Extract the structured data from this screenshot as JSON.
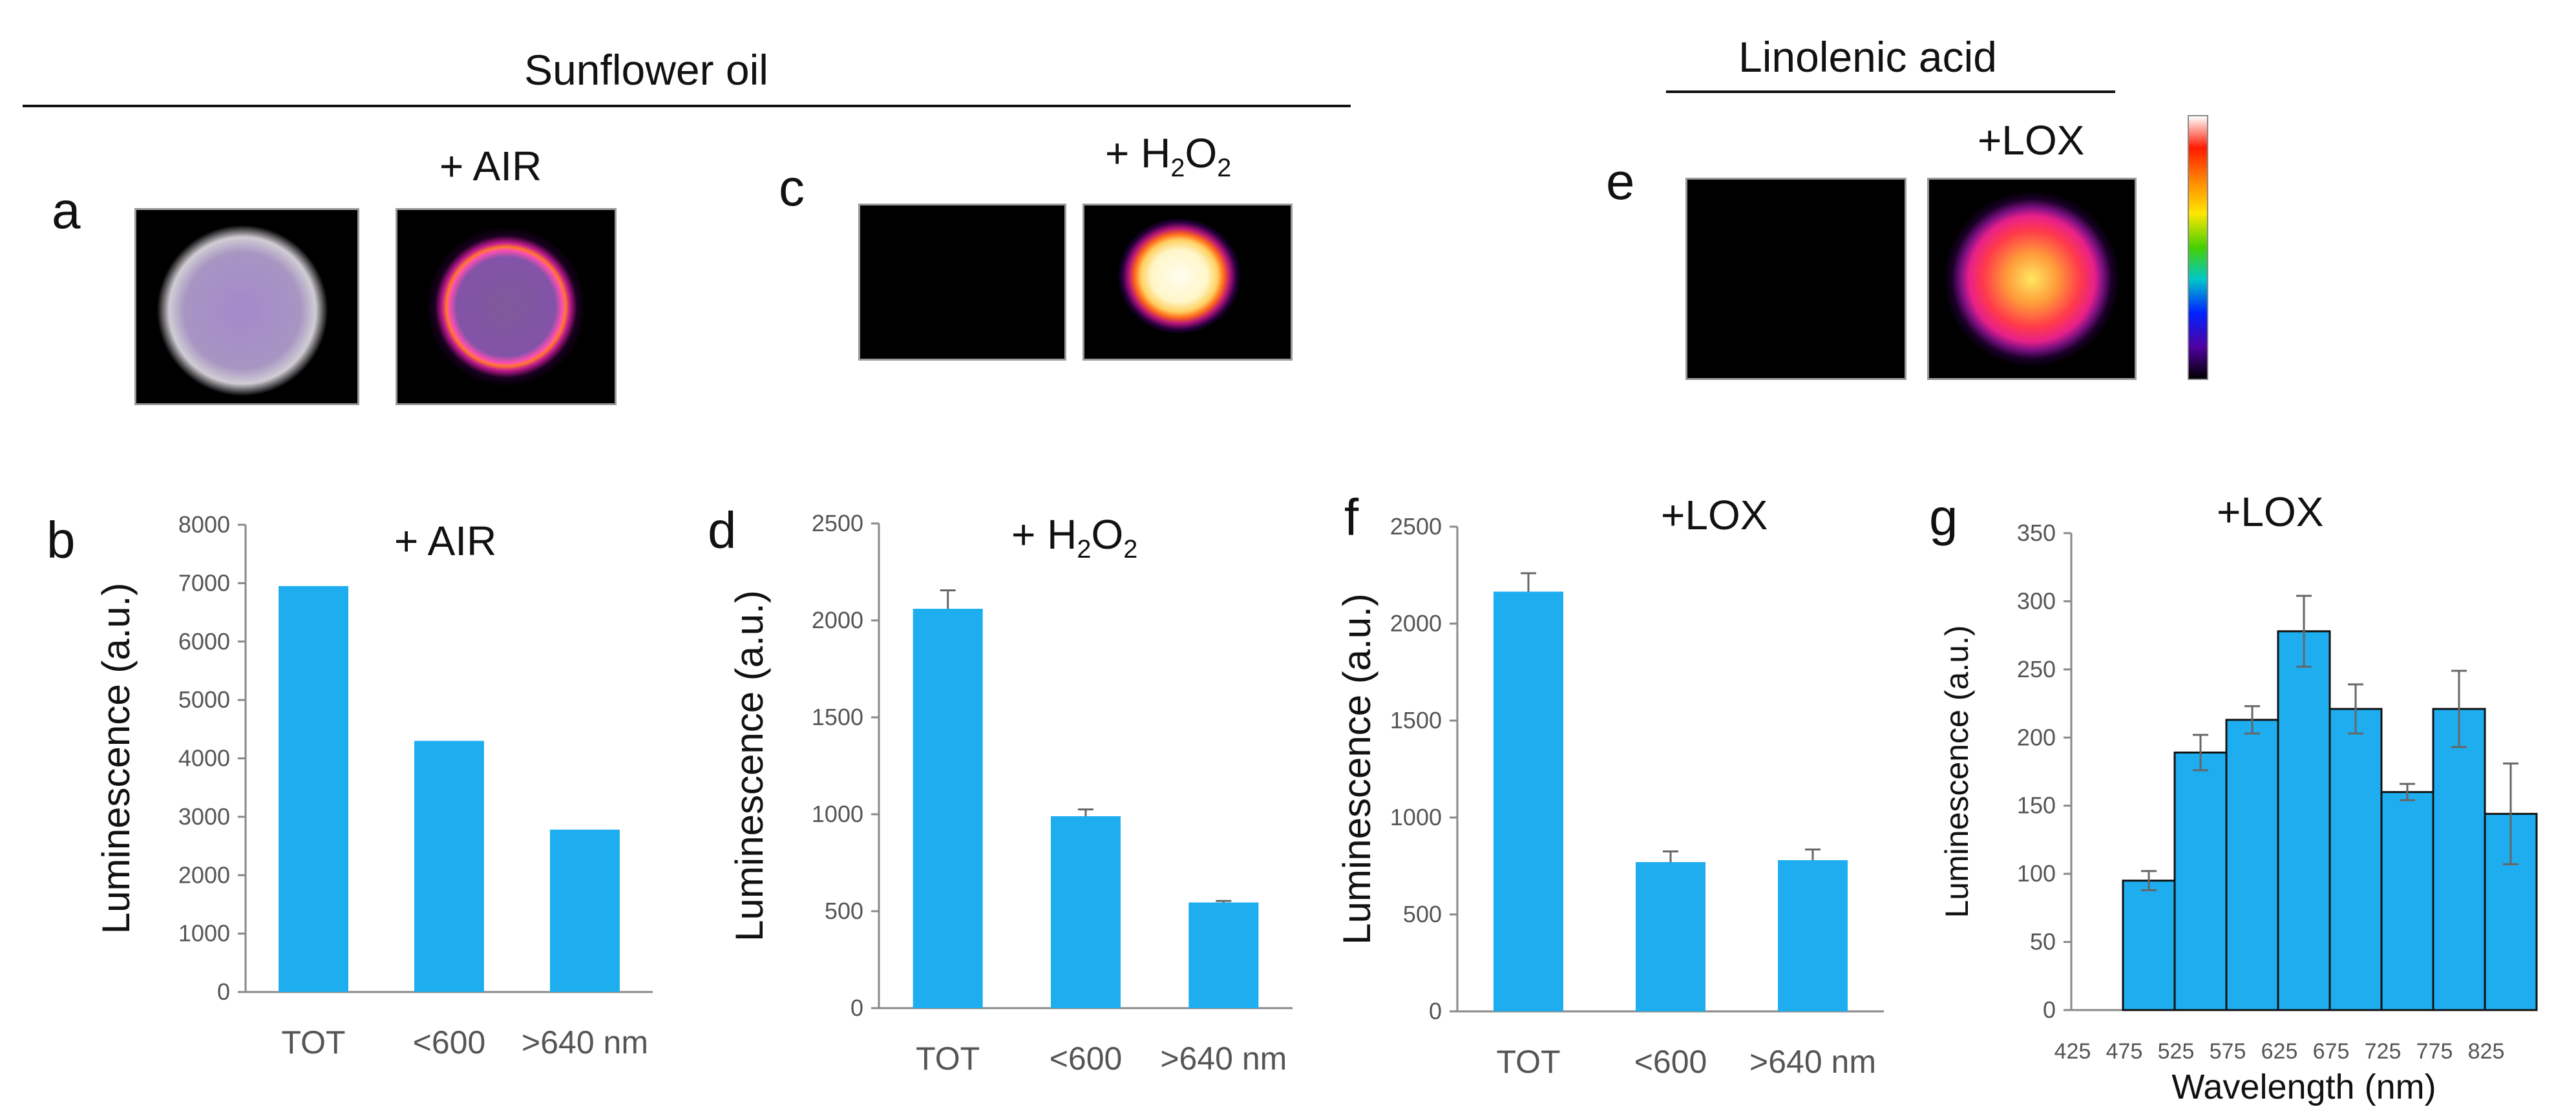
{
  "colors": {
    "bar": "#1EAEF0",
    "bar_stroke": "#111111",
    "axis": "#888888"
  },
  "header": {
    "sunflower_title": "Sunflower oil",
    "linolenic_title": "Linolenic acid"
  },
  "images": {
    "a": {
      "letter": "a",
      "label": "+ AIR"
    },
    "c": {
      "letter": "c",
      "label_prefix": "+ H",
      "label_sub": "2",
      "label_mid": "O",
      "label_sub2": "2"
    },
    "e": {
      "letter": "e",
      "label": "+LOX"
    },
    "colorbar_icon": "intensity-colorbar"
  },
  "chart_data": [
    {
      "id": "b",
      "letter": "b",
      "type": "bar",
      "title": "+ AIR",
      "categories": [
        "TOT",
        "<600",
        ">640 nm"
      ],
      "values": [
        6950,
        4300,
        2780
      ],
      "errors": [
        0,
        0,
        0
      ],
      "ylabel": "Luminescence  (a.u.)",
      "xlabel": "",
      "ylim": [
        0,
        8000
      ],
      "yticks": [
        0,
        1000,
        2000,
        3000,
        4000,
        5000,
        6000,
        7000,
        8000
      ]
    },
    {
      "id": "d",
      "letter": "d",
      "type": "bar",
      "title_prefix": "+ H",
      "title_sub": "2",
      "title_mid": "O",
      "title_sub2": "2",
      "categories": [
        "TOT",
        "<600",
        ">640 nm"
      ],
      "values": [
        2060,
        990,
        545
      ],
      "errors": [
        95,
        35,
        8
      ],
      "ylabel": "Luminescence  (a.u.)",
      "xlabel": "",
      "ylim": [
        0,
        2500
      ],
      "yticks": [
        0,
        500,
        1000,
        1500,
        2000,
        2500
      ]
    },
    {
      "id": "f",
      "letter": "f",
      "type": "bar",
      "title": "+LOX",
      "categories": [
        "TOT",
        "<600",
        ">640 nm"
      ],
      "values": [
        2165,
        770,
        780
      ],
      "errors": [
        95,
        55,
        55
      ],
      "ylabel": "Luminescence  (a.u.)",
      "xlabel": "",
      "ylim": [
        0,
        2500
      ],
      "yticks": [
        0,
        500,
        1000,
        1500,
        2000,
        2500
      ]
    },
    {
      "id": "g",
      "letter": "g",
      "type": "bar",
      "title": "+LOX",
      "categories": [
        "425",
        "475",
        "525",
        "575",
        "625",
        "675",
        "725",
        "775",
        "825"
      ],
      "values": [
        null,
        95,
        189,
        213,
        278,
        221,
        160,
        221,
        144
      ],
      "errors": [
        0,
        7,
        13,
        10,
        26,
        18,
        6,
        28,
        37
      ],
      "ylabel": "Luminescence  (a.u.)",
      "xlabel": "Wavelength  (nm)",
      "ylim": [
        0,
        350
      ],
      "yticks": [
        0,
        50,
        100,
        150,
        200,
        250,
        300,
        350
      ]
    }
  ]
}
